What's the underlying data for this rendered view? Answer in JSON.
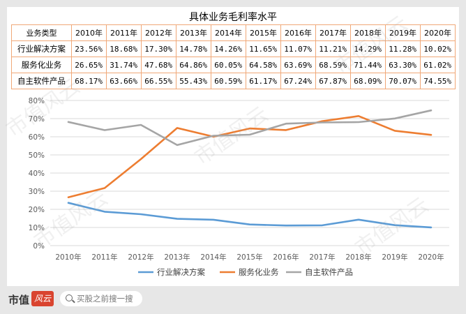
{
  "chart_data": {
    "type": "line",
    "title": "具体业务毛利率水平",
    "table_header": [
      "业务类型",
      "2010年",
      "2011年",
      "2012年",
      "2013年",
      "2014年",
      "2015年",
      "2016年",
      "2017年",
      "2018年",
      "2019年",
      "2020年"
    ],
    "categories": [
      "2010年",
      "2011年",
      "2012年",
      "2013年",
      "2014年",
      "2015年",
      "2016年",
      "2017年",
      "2018年",
      "2019年",
      "2020年"
    ],
    "y_ticks": [
      "0%",
      "10%",
      "20%",
      "30%",
      "40%",
      "50%",
      "60%",
      "70%",
      "80%"
    ],
    "ylim": [
      0,
      80
    ],
    "grid": true,
    "legend_position": "bottom",
    "series": [
      {
        "name": "行业解决方案",
        "color": "#5b9bd5",
        "labels": [
          "23.56%",
          "18.68%",
          "17.30%",
          "14.78%",
          "14.26%",
          "11.65%",
          "11.07%",
          "11.21%",
          "14.29%",
          "11.28%",
          "10.02%"
        ],
        "values": [
          23.56,
          18.68,
          17.3,
          14.78,
          14.26,
          11.65,
          11.07,
          11.21,
          14.29,
          11.28,
          10.02
        ]
      },
      {
        "name": "服务化业务",
        "color": "#ed7d31",
        "labels": [
          "26.65%",
          "31.74%",
          "47.68%",
          "64.86%",
          "60.05%",
          "64.58%",
          "63.69%",
          "68.59%",
          "71.44%",
          "63.30%",
          "61.02%"
        ],
        "values": [
          26.65,
          31.74,
          47.68,
          64.86,
          60.05,
          64.58,
          63.69,
          68.59,
          71.44,
          63.3,
          61.02
        ]
      },
      {
        "name": "自主软件产品",
        "color": "#a5a5a5",
        "labels": [
          "68.17%",
          "63.66%",
          "66.55%",
          "55.43%",
          "60.59%",
          "61.17%",
          "67.24%",
          "67.87%",
          "68.09%",
          "70.07%",
          "74.55%"
        ],
        "values": [
          68.17,
          63.66,
          66.55,
          55.43,
          60.59,
          61.17,
          67.24,
          67.87,
          68.09,
          70.07,
          74.55
        ]
      }
    ]
  },
  "footer": {
    "brand": "市值",
    "brand_logo": "风云",
    "search_placeholder": "买股之前搜一搜"
  },
  "watermark": [
    "市值风云",
    "市值风云",
    "市值风云",
    "市值风云",
    "市值风云"
  ]
}
